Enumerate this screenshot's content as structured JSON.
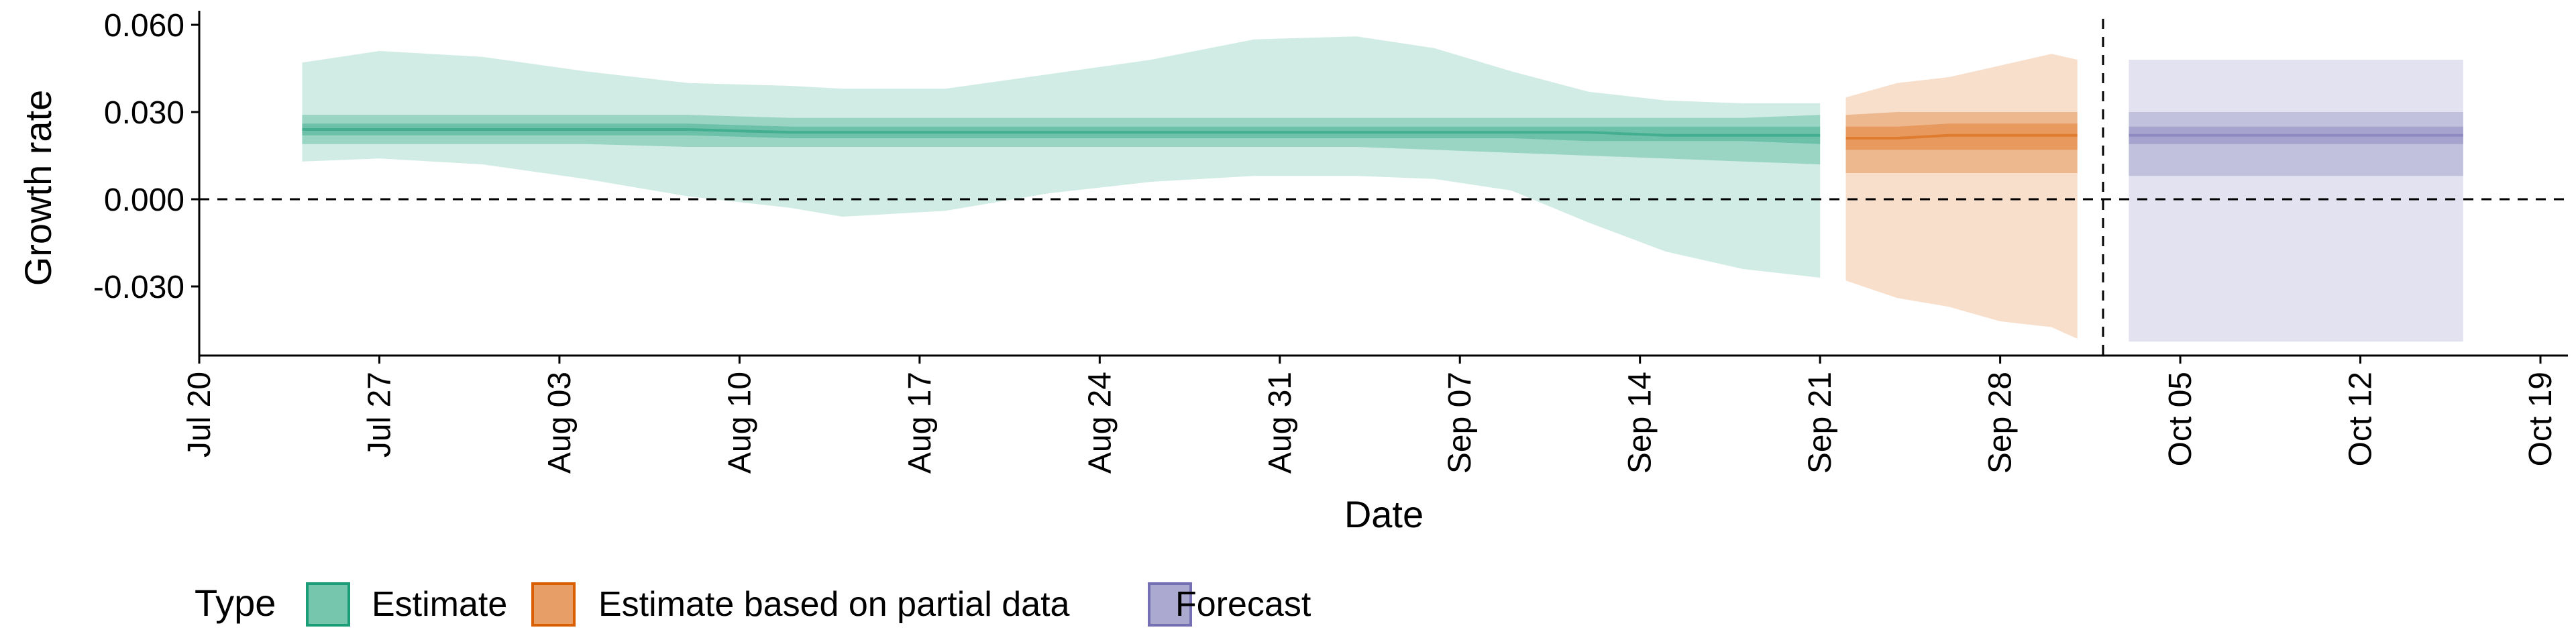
{
  "chart_data": {
    "type": "area",
    "title": "",
    "xlabel": "Date",
    "ylabel": "Growth rate",
    "x_start": "2020-07-20",
    "x_end": "2020-10-19",
    "xticks": [
      "Jul 20",
      "Jul 27",
      "Aug 03",
      "Aug 10",
      "Aug 17",
      "Aug 24",
      "Aug 31",
      "Sep 07",
      "Sep 14",
      "Sep 21",
      "Sep 28",
      "Oct 05",
      "Oct 12",
      "Oct 19"
    ],
    "xtick_dates": [
      "2020-07-20",
      "2020-07-27",
      "2020-08-03",
      "2020-08-10",
      "2020-08-17",
      "2020-08-24",
      "2020-08-31",
      "2020-09-07",
      "2020-09-14",
      "2020-09-21",
      "2020-09-28",
      "2020-10-05",
      "2020-10-12",
      "2020-10-19"
    ],
    "yticks": [
      0.06,
      0.03,
      0.0,
      -0.03
    ],
    "ytick_labels": [
      "0.060",
      "0.030",
      "0.000",
      "-0.030"
    ],
    "ylim": [
      -0.054,
      0.064
    ],
    "reference_lines": {
      "horizontal_y": 0.0,
      "vertical_date": "2020-10-02"
    },
    "grid": false,
    "legend": {
      "title": "Type",
      "position": "bottom-left",
      "entries": [
        {
          "label": "Estimate",
          "color": "#1b9e77"
        },
        {
          "label": "Estimate based on partial data",
          "color": "#d95f02"
        },
        {
          "label": "Forecast",
          "color": "#7570b3"
        }
      ]
    },
    "series": [
      {
        "name": "Estimate",
        "color": "#1b9e77",
        "dates": [
          "2020-07-24",
          "2020-07-27",
          "2020-07-31",
          "2020-08-04",
          "2020-08-08",
          "2020-08-12",
          "2020-08-14",
          "2020-08-18",
          "2020-08-22",
          "2020-08-26",
          "2020-08-30",
          "2020-09-03",
          "2020-09-06",
          "2020-09-09",
          "2020-09-12",
          "2020-09-15",
          "2020-09-18",
          "2020-09-21"
        ],
        "lower90": [
          0.013,
          0.014,
          0.012,
          0.007,
          0.001,
          -0.003,
          -0.006,
          -0.004,
          0.002,
          0.006,
          0.008,
          0.008,
          0.007,
          0.003,
          -0.008,
          -0.018,
          -0.024,
          -0.027
        ],
        "lower50": [
          0.019,
          0.019,
          0.019,
          0.019,
          0.018,
          0.018,
          0.018,
          0.018,
          0.018,
          0.018,
          0.018,
          0.018,
          0.017,
          0.016,
          0.015,
          0.014,
          0.013,
          0.012
        ],
        "lower20": [
          0.022,
          0.022,
          0.022,
          0.022,
          0.022,
          0.021,
          0.021,
          0.021,
          0.021,
          0.021,
          0.021,
          0.021,
          0.021,
          0.021,
          0.02,
          0.02,
          0.02,
          0.019
        ],
        "median": [
          0.024,
          0.024,
          0.024,
          0.024,
          0.024,
          0.023,
          0.023,
          0.023,
          0.023,
          0.023,
          0.023,
          0.023,
          0.023,
          0.023,
          0.023,
          0.022,
          0.022,
          0.022
        ],
        "upper20": [
          0.026,
          0.026,
          0.026,
          0.026,
          0.026,
          0.025,
          0.025,
          0.025,
          0.025,
          0.025,
          0.025,
          0.025,
          0.025,
          0.025,
          0.025,
          0.025,
          0.025,
          0.025
        ],
        "upper50": [
          0.029,
          0.029,
          0.029,
          0.029,
          0.029,
          0.028,
          0.028,
          0.028,
          0.028,
          0.028,
          0.028,
          0.028,
          0.028,
          0.028,
          0.028,
          0.028,
          0.028,
          0.029
        ],
        "upper90": [
          0.047,
          0.051,
          0.049,
          0.044,
          0.04,
          0.039,
          0.038,
          0.038,
          0.043,
          0.048,
          0.055,
          0.056,
          0.052,
          0.044,
          0.037,
          0.034,
          0.033,
          0.033
        ]
      },
      {
        "name": "Estimate based on partial data",
        "color": "#d95f02",
        "dates": [
          "2020-09-22",
          "2020-09-24",
          "2020-09-26",
          "2020-09-28",
          "2020-09-30",
          "2020-10-01"
        ],
        "lower90": [
          -0.028,
          -0.034,
          -0.037,
          -0.042,
          -0.044,
          -0.048
        ],
        "lower50": [
          0.009,
          0.009,
          0.009,
          0.009,
          0.009,
          0.009
        ],
        "lower20": [
          0.017,
          0.017,
          0.017,
          0.017,
          0.017,
          0.017
        ],
        "median": [
          0.021,
          0.021,
          0.022,
          0.022,
          0.022,
          0.022
        ],
        "upper20": [
          0.025,
          0.025,
          0.026,
          0.026,
          0.026,
          0.026
        ],
        "upper50": [
          0.029,
          0.03,
          0.03,
          0.03,
          0.03,
          0.03
        ],
        "upper90": [
          0.035,
          0.04,
          0.042,
          0.046,
          0.05,
          0.048
        ]
      },
      {
        "name": "Forecast",
        "color": "#7570b3",
        "dates": [
          "2020-10-03",
          "2020-10-16"
        ],
        "lower90": [
          -0.049,
          -0.049
        ],
        "lower50": [
          0.008,
          0.008
        ],
        "lower20": [
          0.019,
          0.019
        ],
        "median": [
          0.022,
          0.022
        ],
        "upper20": [
          0.025,
          0.025
        ],
        "upper50": [
          0.03,
          0.03
        ],
        "upper90": [
          0.048,
          0.048
        ]
      }
    ]
  }
}
